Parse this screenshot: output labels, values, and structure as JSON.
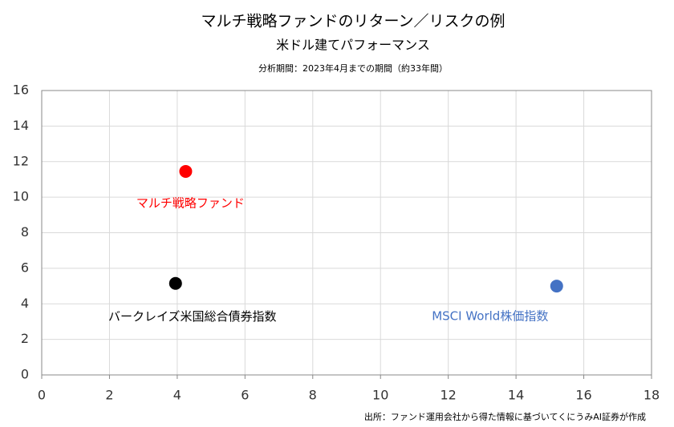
{
  "chart_data": {
    "type": "scatter",
    "title": "マルチ戦略ファンドのリターン／リスクの例",
    "subtitle": "米ドル建てパフォーマンス",
    "note": "分析期間：2023年4月までの期間（約33年間）",
    "source": "出所：ファンド運用会社から得た情報に基づいてくにうみAI証券が作成",
    "series": [
      {
        "name": "マルチ戦略ファンド",
        "color": "#ff0000",
        "x": [
          4.25
        ],
        "values": [
          11.45
        ]
      },
      {
        "name": "バークレイズ米国総合債券指数",
        "color": "#000000",
        "x": [
          3.95
        ],
        "values": [
          5.15
        ]
      },
      {
        "name": "MSCI World株価指数",
        "color": "#4472c4",
        "x": [
          15.2
        ],
        "values": [
          5.0
        ]
      }
    ],
    "xlim": [
      0,
      18
    ],
    "xticks": [
      0,
      2,
      4,
      6,
      8,
      10,
      12,
      14,
      16,
      18
    ],
    "ylim": [
      0,
      16
    ],
    "yticks": [
      0,
      2,
      4,
      6,
      8,
      10,
      12,
      14,
      16
    ],
    "grid": true
  }
}
